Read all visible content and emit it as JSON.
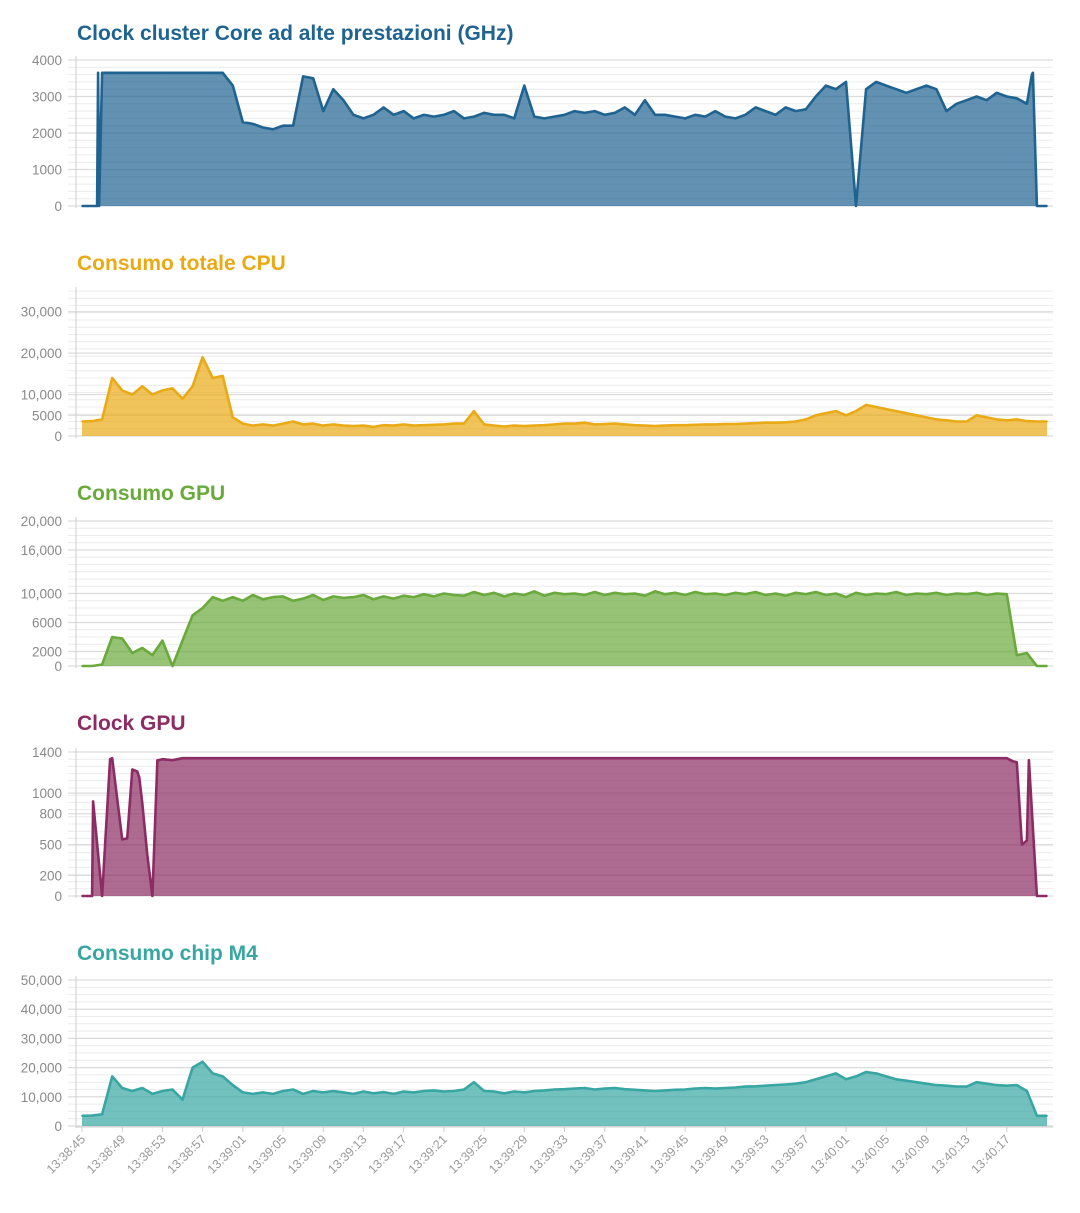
{
  "chart_data": [
    {
      "type": "area",
      "title": "Clock cluster Core ad alte prestazioni (GHz)",
      "color": "#1f6391",
      "ylim": [
        0,
        4000
      ],
      "yticks": [
        "4000",
        "3000",
        "2000",
        "1000",
        "0"
      ],
      "ytick_values": [
        4000,
        3000,
        2000,
        1000,
        0
      ],
      "x_start": 0,
      "x_end": 96,
      "x": [
        0,
        1.5,
        1.6,
        1.7,
        2,
        4,
        6,
        8,
        10,
        12,
        14,
        15,
        16,
        17,
        18,
        19,
        20,
        21,
        22,
        23,
        24,
        25,
        26,
        27,
        28,
        29,
        30,
        31,
        32,
        33,
        34,
        35,
        36,
        37,
        38,
        39,
        40,
        41,
        42,
        43,
        44,
        45,
        46,
        47,
        48,
        49,
        50,
        51,
        52,
        53,
        54,
        55,
        56,
        57,
        58,
        59,
        60,
        61,
        62,
        63,
        64,
        65,
        66,
        67,
        68,
        69,
        70,
        71,
        72,
        73,
        74,
        75,
        76,
        77,
        78,
        79,
        80,
        81,
        82,
        83,
        84,
        85,
        86,
        87,
        88,
        89,
        90,
        91,
        92,
        93,
        94,
        94.5,
        94.6,
        95,
        96
      ],
      "values": [
        0,
        0,
        3650,
        0,
        3650,
        3650,
        3650,
        3650,
        3650,
        3650,
        3650,
        3300,
        2300,
        2250,
        2150,
        2100,
        2200,
        2200,
        3550,
        3500,
        2600,
        3200,
        2900,
        2500,
        2400,
        2500,
        2700,
        2500,
        2600,
        2400,
        2500,
        2450,
        2500,
        2600,
        2400,
        2450,
        2550,
        2500,
        2500,
        2400,
        3300,
        2450,
        2400,
        2450,
        2500,
        2600,
        2550,
        2600,
        2500,
        2550,
        2700,
        2500,
        2900,
        2500,
        2500,
        2450,
        2400,
        2500,
        2450,
        2600,
        2450,
        2400,
        2500,
        2700,
        2600,
        2500,
        2700,
        2600,
        2650,
        3000,
        3300,
        3200,
        3400,
        0,
        3200,
        3400,
        3300,
        3200,
        3100,
        3200,
        3300,
        3200,
        2600,
        2800,
        2900,
        3000,
        2900,
        3100,
        3000,
        2950,
        2800,
        3600,
        3650,
        0,
        0
      ]
    },
    {
      "type": "area",
      "title": "Consumo totale CPU",
      "color": "#e9aa16",
      "ylim": [
        0,
        35000
      ],
      "yticks": [
        "30,000",
        "20,000",
        "10,000",
        "5000",
        "0"
      ],
      "ytick_values": [
        30000,
        20000,
        10000,
        5000,
        0
      ],
      "x_start": 0,
      "x_end": 96,
      "x": [
        0,
        1,
        2,
        3,
        4,
        5,
        6,
        7,
        8,
        9,
        10,
        11,
        12,
        13,
        14,
        15,
        16,
        17,
        18,
        19,
        20,
        21,
        22,
        23,
        24,
        25,
        26,
        27,
        28,
        29,
        30,
        31,
        32,
        33,
        34,
        35,
        36,
        37,
        38,
        39,
        40,
        41,
        42,
        43,
        44,
        45,
        46,
        47,
        48,
        49,
        50,
        51,
        52,
        53,
        54,
        55,
        56,
        57,
        58,
        59,
        60,
        61,
        62,
        63,
        64,
        65,
        66,
        67,
        68,
        69,
        70,
        71,
        72,
        73,
        74,
        75,
        76,
        77,
        78,
        79,
        80,
        81,
        82,
        83,
        84,
        85,
        86,
        87,
        88,
        89,
        90,
        91,
        92,
        93,
        94,
        95,
        96
      ],
      "values": [
        3500,
        3600,
        4000,
        14000,
        11000,
        10000,
        12000,
        10000,
        11000,
        11500,
        9000,
        12000,
        19000,
        14000,
        14500,
        4500,
        3000,
        2500,
        2800,
        2500,
        3000,
        3500,
        2800,
        3000,
        2500,
        2800,
        2500,
        2400,
        2500,
        2200,
        2600,
        2500,
        2800,
        2500,
        2600,
        2700,
        2800,
        3000,
        3000,
        6000,
        2800,
        2500,
        2300,
        2500,
        2400,
        2500,
        2600,
        2800,
        3000,
        3000,
        3200,
        2800,
        2900,
        3000,
        2800,
        2600,
        2500,
        2400,
        2500,
        2600,
        2600,
        2700,
        2800,
        2800,
        2900,
        2900,
        3000,
        3100,
        3200,
        3200,
        3300,
        3500,
        4000,
        5000,
        5500,
        6000,
        5000,
        6000,
        7500,
        7000,
        6500,
        6000,
        5500,
        5000,
        4500,
        4000,
        3800,
        3500,
        3500,
        5000,
        4500,
        4000,
        3800,
        4000,
        3600,
        3500,
        3500
      ]
    },
    {
      "type": "area",
      "title": "Consumo GPU",
      "color": "#6aaa3c",
      "ylim": [
        0,
        20000
      ],
      "yticks": [
        "20,000",
        "16,000",
        "10,000",
        "6000",
        "2000",
        "0"
      ],
      "ytick_values": [
        20000,
        16000,
        10000,
        6000,
        2000,
        0
      ],
      "x_start": 0,
      "x_end": 96,
      "x": [
        0,
        1,
        2,
        3,
        4,
        5,
        6,
        7,
        8,
        9,
        10,
        11,
        12,
        13,
        14,
        15,
        16,
        17,
        18,
        19,
        20,
        21,
        22,
        23,
        24,
        25,
        26,
        27,
        28,
        29,
        30,
        31,
        32,
        33,
        34,
        35,
        36,
        37,
        38,
        39,
        40,
        41,
        42,
        43,
        44,
        45,
        46,
        47,
        48,
        49,
        50,
        51,
        52,
        53,
        54,
        55,
        56,
        57,
        58,
        59,
        60,
        61,
        62,
        63,
        64,
        65,
        66,
        67,
        68,
        69,
        70,
        71,
        72,
        73,
        74,
        75,
        76,
        77,
        78,
        79,
        80,
        81,
        82,
        83,
        84,
        85,
        86,
        87,
        88,
        89,
        90,
        91,
        92,
        93,
        94,
        95,
        96
      ],
      "values": [
        0,
        0,
        200,
        4000,
        3800,
        1800,
        2500,
        1500,
        3500,
        0,
        3500,
        7000,
        8000,
        9500,
        9000,
        9500,
        9000,
        9800,
        9200,
        9500,
        9600,
        9000,
        9300,
        9800,
        9100,
        9600,
        9400,
        9500,
        9800,
        9200,
        9600,
        9300,
        9700,
        9500,
        9900,
        9600,
        10000,
        9800,
        9700,
        10200,
        9800,
        10100,
        9600,
        10000,
        9800,
        10300,
        9700,
        10100,
        9900,
        10000,
        9800,
        10200,
        9800,
        10100,
        9900,
        10000,
        9700,
        10300,
        9900,
        10100,
        9800,
        10200,
        9900,
        10000,
        9800,
        10100,
        9900,
        10200,
        9800,
        10000,
        9700,
        10100,
        9900,
        10200,
        9800,
        10000,
        9500,
        10100,
        9800,
        10000,
        9900,
        10200,
        9800,
        10000,
        9900,
        10100,
        9800,
        10000,
        9900,
        10100,
        9800,
        10000,
        9900,
        1500,
        1800,
        0,
        0
      ]
    },
    {
      "type": "area",
      "title": "Clock GPU",
      "color": "#8c2c63",
      "ylim": [
        0,
        1400
      ],
      "yticks": [
        "1400",
        "1000",
        "800",
        "500",
        "200",
        "0"
      ],
      "ytick_values": [
        1400,
        1000,
        800,
        500,
        200,
        0
      ],
      "x_start": 0,
      "x_end": 96,
      "x": [
        0,
        1,
        1.1,
        2,
        2.8,
        3,
        4,
        4.5,
        5,
        5.5,
        5.7,
        6,
        6.5,
        7,
        7.5,
        7.6,
        8,
        9,
        10,
        20,
        40,
        60,
        80,
        92,
        92.6,
        93,
        93.5,
        94,
        94.2,
        95,
        96
      ],
      "values": [
        0,
        0,
        920,
        0,
        1330,
        1340,
        550,
        560,
        1230,
        1210,
        1150,
        900,
        400,
        0,
        1320,
        1320,
        1330,
        1320,
        1340,
        1340,
        1340,
        1340,
        1340,
        1340,
        1310,
        1300,
        500,
        540,
        1320,
        0,
        0
      ]
    },
    {
      "type": "area",
      "title": "Consumo chip M4",
      "color": "#38a6a2",
      "ylim": [
        0,
        50000
      ],
      "yticks": [
        "50,000",
        "40,000",
        "30,000",
        "20,000",
        "10,000",
        "0"
      ],
      "ytick_values": [
        50000,
        40000,
        30000,
        20000,
        10000,
        0
      ],
      "x_start": 0,
      "x_end": 96,
      "x": [
        0,
        1,
        2,
        3,
        4,
        5,
        6,
        7,
        8,
        9,
        10,
        11,
        12,
        13,
        14,
        15,
        16,
        17,
        18,
        19,
        20,
        21,
        22,
        23,
        24,
        25,
        26,
        27,
        28,
        29,
        30,
        31,
        32,
        33,
        34,
        35,
        36,
        37,
        38,
        39,
        40,
        41,
        42,
        43,
        44,
        45,
        46,
        47,
        48,
        49,
        50,
        51,
        52,
        53,
        54,
        55,
        56,
        57,
        58,
        59,
        60,
        61,
        62,
        63,
        64,
        65,
        66,
        67,
        68,
        69,
        70,
        71,
        72,
        73,
        74,
        75,
        76,
        77,
        78,
        79,
        80,
        81,
        82,
        83,
        84,
        85,
        86,
        87,
        88,
        89,
        90,
        91,
        92,
        93,
        94,
        95,
        96
      ],
      "values": [
        3500,
        3600,
        4000,
        17000,
        13000,
        12000,
        13000,
        11000,
        12000,
        12500,
        9000,
        20000,
        22000,
        18000,
        17000,
        14000,
        11500,
        11000,
        11500,
        11000,
        12000,
        12500,
        11000,
        12000,
        11500,
        12000,
        11500,
        11000,
        11800,
        11200,
        11600,
        11000,
        11800,
        11500,
        12000,
        12200,
        11800,
        12000,
        12500,
        15000,
        12000,
        11800,
        11200,
        11800,
        11500,
        12000,
        12200,
        12500,
        12600,
        12800,
        13000,
        12500,
        12800,
        13000,
        12600,
        12400,
        12200,
        12000,
        12200,
        12400,
        12500,
        12800,
        13000,
        12800,
        13000,
        13200,
        13500,
        13600,
        13800,
        14000,
        14200,
        14500,
        15000,
        16000,
        17000,
        18000,
        16000,
        17000,
        18500,
        18000,
        17000,
        16000,
        15500,
        15000,
        14500,
        14000,
        13800,
        13500,
        13500,
        15000,
        14500,
        14000,
        13800,
        14000,
        12000,
        3500,
        3500
      ]
    }
  ],
  "x_axis": {
    "ticks": [
      "13:38:45",
      "13:38:49",
      "13:38:53",
      "13:38:57",
      "13:39:01",
      "13:39:05",
      "13:39:09",
      "13:39:13",
      "13:39:17",
      "13:39:21",
      "13:39:25",
      "13:39:29",
      "13:39:33",
      "13:39:37",
      "13:39:41",
      "13:39:45",
      "13:39:49",
      "13:39:53",
      "13:39:57",
      "13:40:01",
      "13:40:05",
      "13:40:09",
      "13:40:13",
      "13:40:17"
    ],
    "tick_values": [
      0,
      4,
      8,
      12,
      16,
      20,
      24,
      28,
      32,
      36,
      40,
      44,
      48,
      52,
      56,
      60,
      64,
      68,
      72,
      76,
      80,
      84,
      88,
      92
    ]
  }
}
